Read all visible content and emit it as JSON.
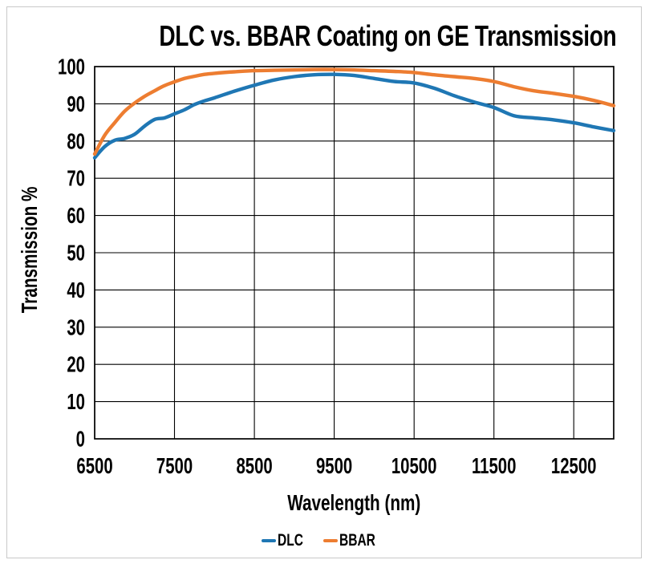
{
  "frame": {
    "background": "#ffffff",
    "border_color": "#c9c9c9"
  },
  "axes": {
    "line_color": "#000000"
  },
  "chart_data": {
    "type": "line",
    "title": "DLC vs. BBAR Coating on GE Transmission",
    "xlabel": "Wavelength (nm)",
    "ylabel": "Transmission %",
    "xlim": [
      6500,
      13000
    ],
    "ylim": [
      0,
      100
    ],
    "x_ticks": [
      6500,
      7500,
      8500,
      9500,
      10500,
      11500,
      12500
    ],
    "y_ticks": [
      0,
      10,
      20,
      30,
      40,
      50,
      60,
      70,
      80,
      90,
      100
    ],
    "grid": true,
    "legend_position": "bottom",
    "x": [
      6500,
      6625,
      6750,
      6875,
      7000,
      7125,
      7250,
      7375,
      7500,
      7625,
      7750,
      7875,
      8000,
      8250,
      8500,
      8750,
      9000,
      9250,
      9500,
      9750,
      10000,
      10250,
      10500,
      10750,
      11000,
      11250,
      11500,
      11750,
      12000,
      12250,
      12500,
      12750,
      13000
    ],
    "series": [
      {
        "name": "DLC",
        "color": "#1F77B4",
        "values": [
          75.5,
          78.5,
          80.2,
          80.7,
          81.8,
          84.0,
          85.8,
          86.2,
          87.3,
          88.4,
          89.8,
          90.8,
          91.6,
          93.4,
          95.0,
          96.4,
          97.3,
          97.8,
          97.9,
          97.6,
          96.8,
          96.0,
          95.6,
          94.2,
          92.2,
          90.5,
          89.0,
          86.8,
          86.2,
          85.7,
          84.9,
          83.8,
          82.8
        ]
      },
      {
        "name": "BBAR",
        "color": "#ED7D31",
        "values": [
          76.5,
          81.5,
          84.9,
          88.0,
          90.2,
          92.0,
          93.5,
          94.9,
          95.9,
          96.8,
          97.4,
          97.9,
          98.2,
          98.6,
          98.9,
          99.0,
          99.1,
          99.2,
          99.2,
          99.1,
          98.9,
          98.7,
          98.4,
          97.8,
          97.3,
          96.8,
          96.0,
          94.6,
          93.5,
          92.8,
          92.0,
          90.9,
          89.5
        ]
      }
    ]
  }
}
